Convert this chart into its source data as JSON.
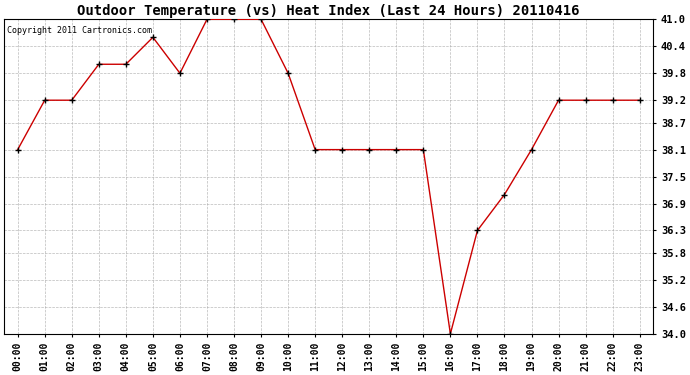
{
  "title": "Outdoor Temperature (vs) Heat Index (Last 24 Hours) 20110416",
  "copyright_text": "Copyright 2011 Cartronics.com",
  "x_labels": [
    "00:00",
    "01:00",
    "02:00",
    "03:00",
    "04:00",
    "05:00",
    "06:00",
    "07:00",
    "08:00",
    "09:00",
    "10:00",
    "11:00",
    "12:00",
    "13:00",
    "14:00",
    "15:00",
    "16:00",
    "17:00",
    "18:00",
    "19:00",
    "20:00",
    "21:00",
    "22:00",
    "23:00"
  ],
  "y_values": [
    38.1,
    39.2,
    39.2,
    40.0,
    40.0,
    40.6,
    39.8,
    41.0,
    41.0,
    41.0,
    39.8,
    38.1,
    38.1,
    38.1,
    38.1,
    38.1,
    34.0,
    36.3,
    37.1,
    38.1,
    39.2,
    39.2,
    39.2,
    39.2
  ],
  "ylim_min": 34.0,
  "ylim_max": 41.0,
  "ytick_values": [
    34.0,
    34.6,
    35.2,
    35.8,
    36.3,
    36.9,
    37.5,
    38.1,
    38.7,
    39.2,
    39.8,
    40.4,
    41.0
  ],
  "ytick_labels": [
    "34.0",
    "34.6",
    "35.2",
    "35.8",
    "36.3",
    "36.9",
    "37.5",
    "38.1",
    "38.7",
    "39.2",
    "39.8",
    "40.4",
    "41.0"
  ],
  "line_color": "#cc0000",
  "marker_color": "#000000",
  "bg_color": "#ffffff",
  "plot_bg_color": "#ffffff",
  "grid_color": "#aaaaaa",
  "title_fontsize": 10,
  "copyright_fontsize": 6,
  "tick_fontsize": 7,
  "ylabel_fontsize": 7.5
}
